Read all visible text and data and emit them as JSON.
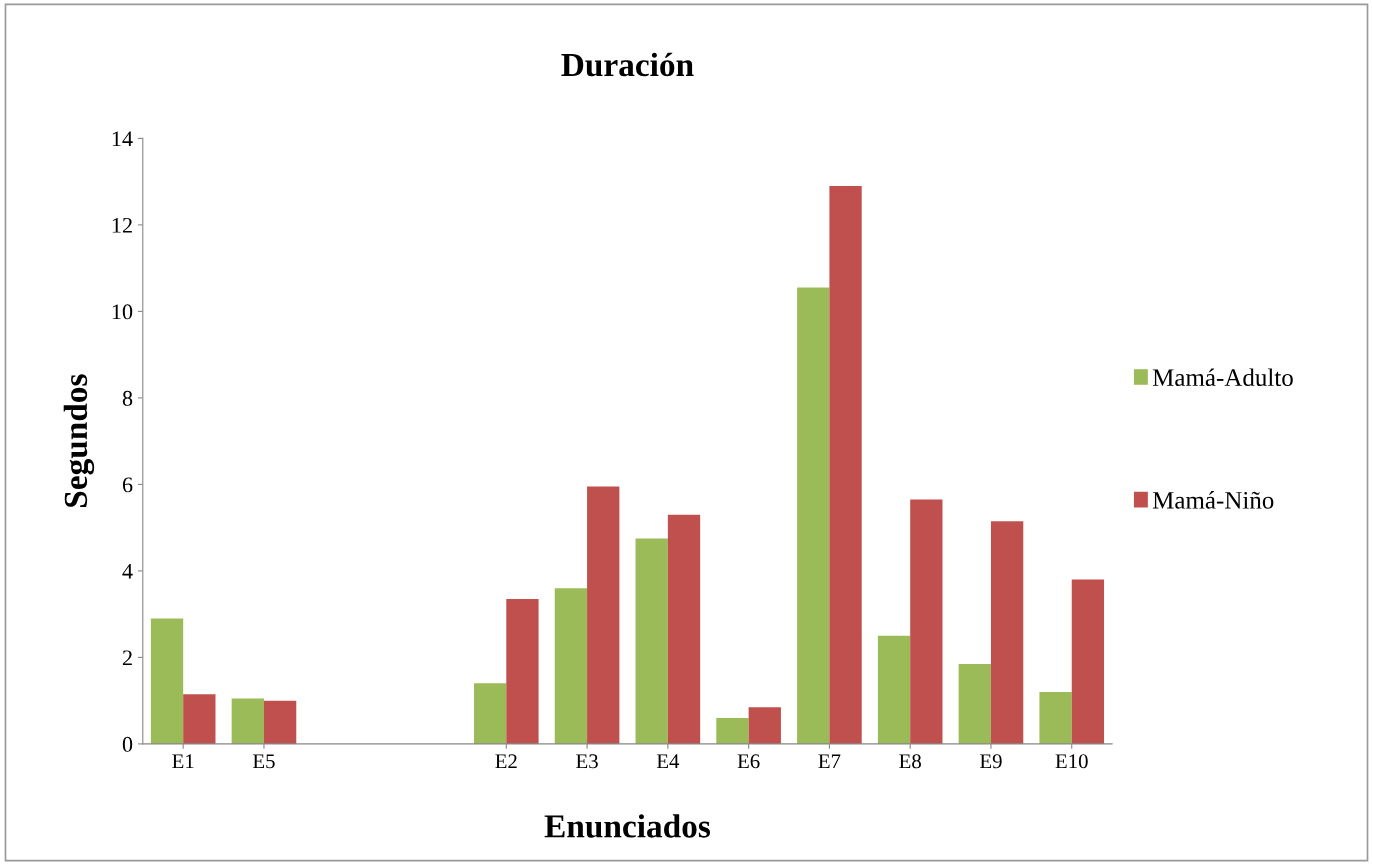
{
  "chart_data": {
    "type": "bar",
    "title": "Duración",
    "xlabel": "Enunciados",
    "ylabel": "Segundos",
    "categories": [
      "E1",
      "E5",
      null,
      null,
      "E2",
      "E3",
      "E4",
      "E6",
      "E7",
      "E8",
      "E9",
      "E10"
    ],
    "series": [
      {
        "name": "Mamá-Adulto",
        "color": "#9bbb59",
        "values": [
          2.9,
          1.05,
          null,
          null,
          1.4,
          3.6,
          4.75,
          0.6,
          10.55,
          2.5,
          1.85,
          1.2
        ]
      },
      {
        "name": "Mamá-Niño",
        "color": "#c0504d",
        "values": [
          1.15,
          1.0,
          null,
          null,
          3.35,
          5.95,
          5.3,
          0.85,
          12.9,
          5.65,
          5.15,
          3.8
        ]
      }
    ],
    "ylim": [
      0,
      14
    ],
    "yticks": [
      0,
      2,
      4,
      6,
      8,
      10,
      12,
      14
    ],
    "grid": false,
    "legend": "right"
  }
}
